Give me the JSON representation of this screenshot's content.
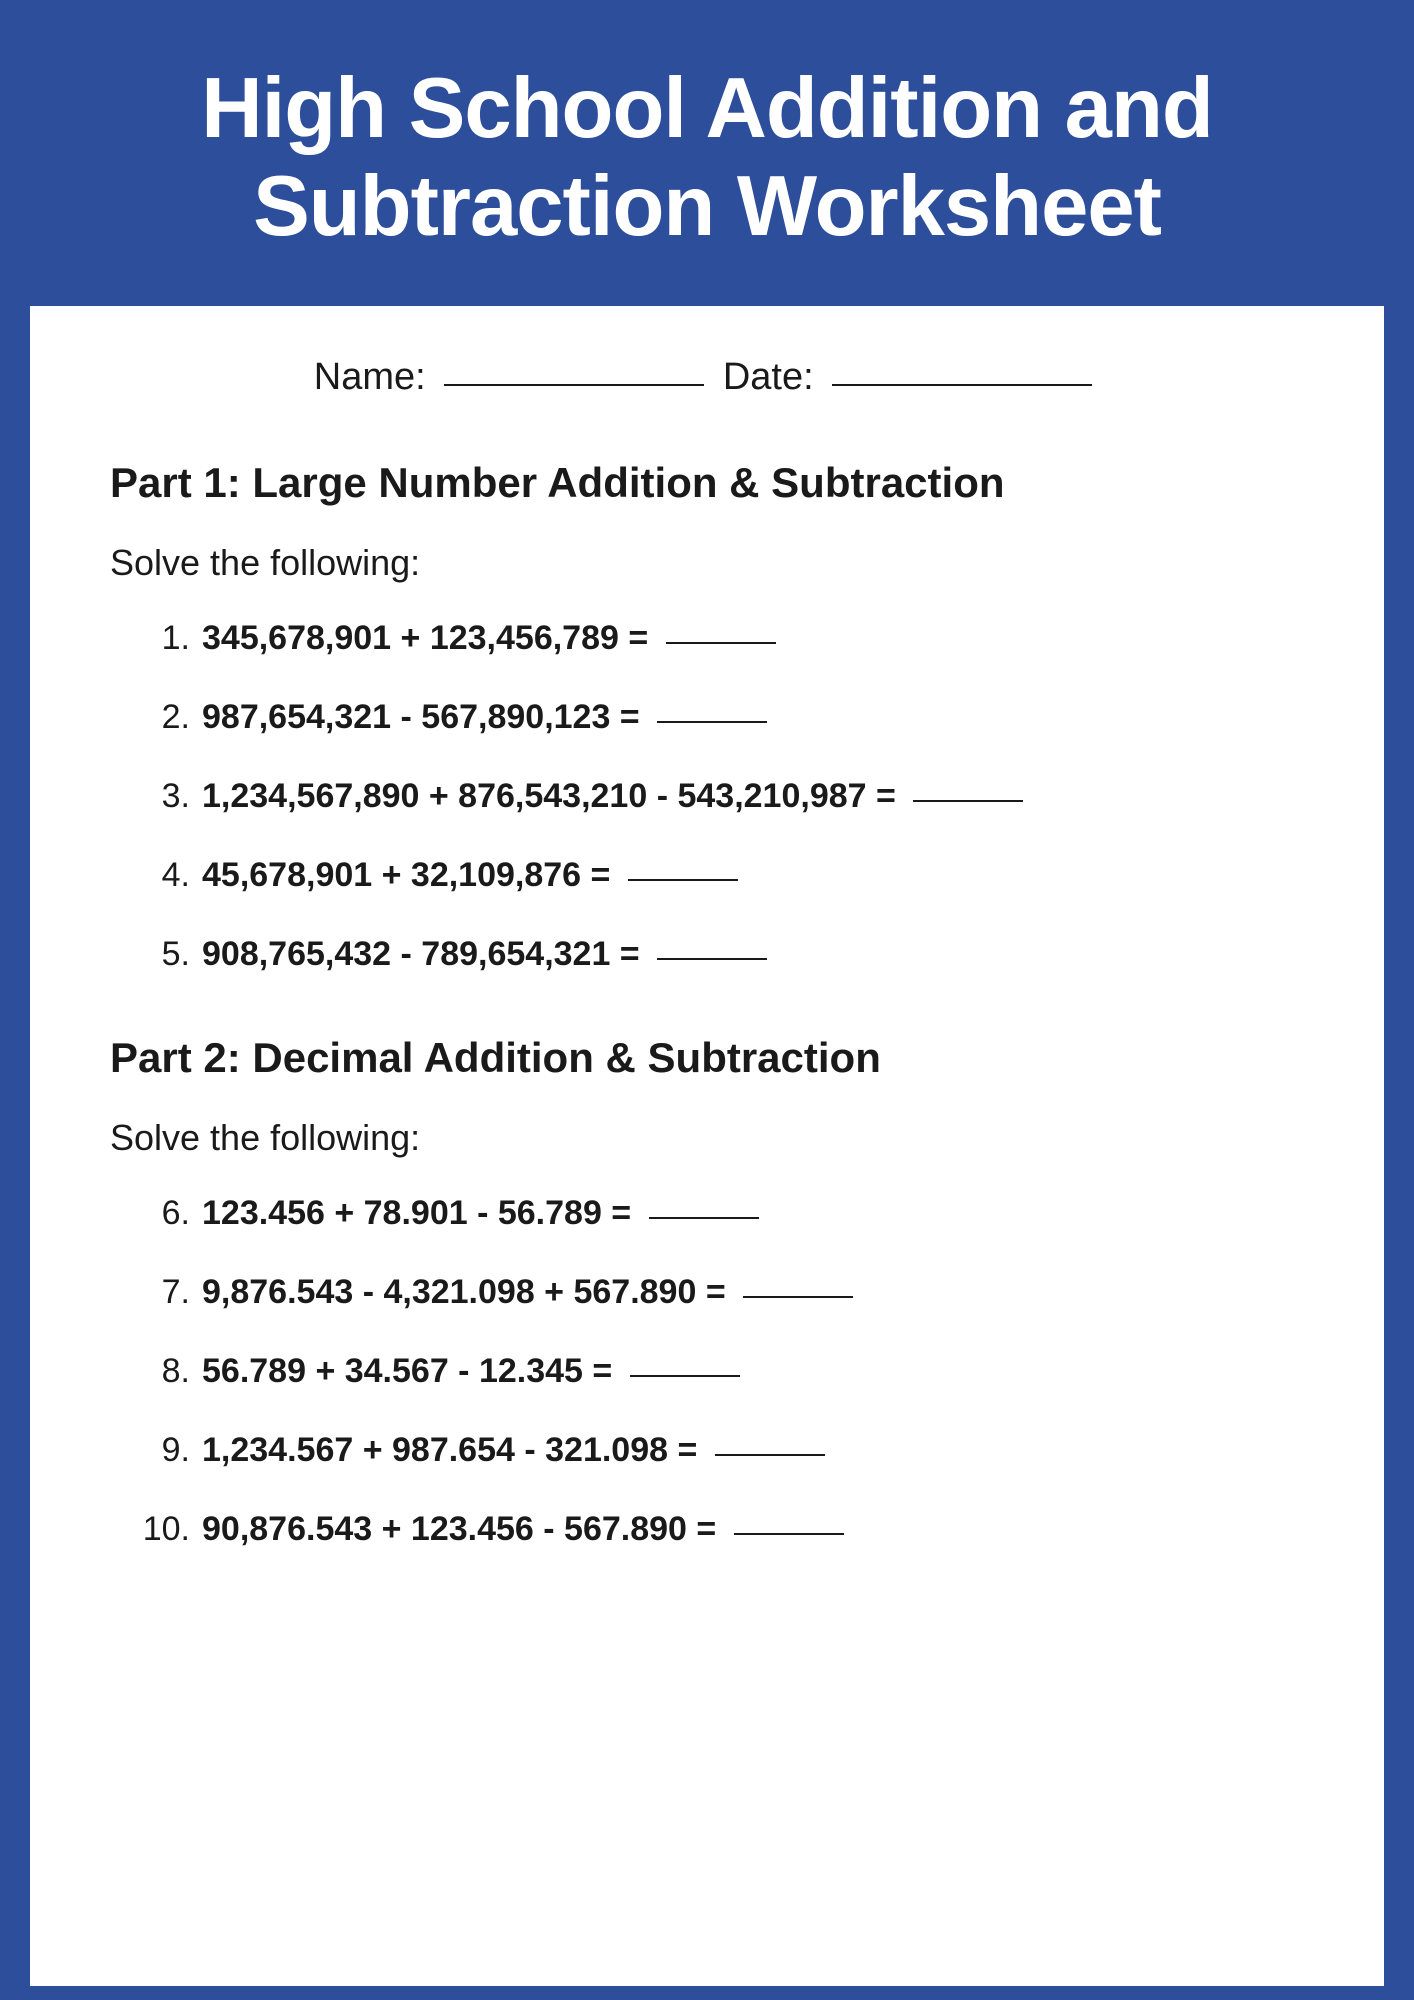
{
  "header": {
    "title": "High School Addition and Subtraction Worksheet"
  },
  "name_date": {
    "name_label": "Name:",
    "date_label": "Date:"
  },
  "part1": {
    "title": "Part 1: Large Number Addition & Subtraction",
    "instruction": "Solve the following:",
    "problems": [
      {
        "num": "1.",
        "text": "345,678,901 + 123,456,789 ="
      },
      {
        "num": "2.",
        "text": "987,654,321 - 567,890,123 ="
      },
      {
        "num": "3.",
        "text": "1,234,567,890 + 876,543,210 - 543,210,987 ="
      },
      {
        "num": "4.",
        "text": "45,678,901 + 32,109,876 ="
      },
      {
        "num": "5.",
        "text": "908,765,432 - 789,654,321 ="
      }
    ]
  },
  "part2": {
    "title": "Part 2: Decimal Addition & Subtraction",
    "instruction": "Solve the following:",
    "problems": [
      {
        "num": "6.",
        "text": "123.456 + 78.901 - 56.789 ="
      },
      {
        "num": "7.",
        "text": "9,876.543 - 4,321.098 + 567.890 ="
      },
      {
        "num": "8.",
        "text": "56.789 + 34.567 - 12.345 ="
      },
      {
        "num": "9.",
        "text": "1,234.567 + 987.654 - 321.098 ="
      },
      {
        "num": "10.",
        "text": "90,876.543 + 123.456 - 567.890 ="
      }
    ]
  },
  "colors": {
    "background": "#2c4e9b",
    "content_bg": "#ffffff",
    "text": "#1a1a1a",
    "header_text": "#ffffff"
  }
}
